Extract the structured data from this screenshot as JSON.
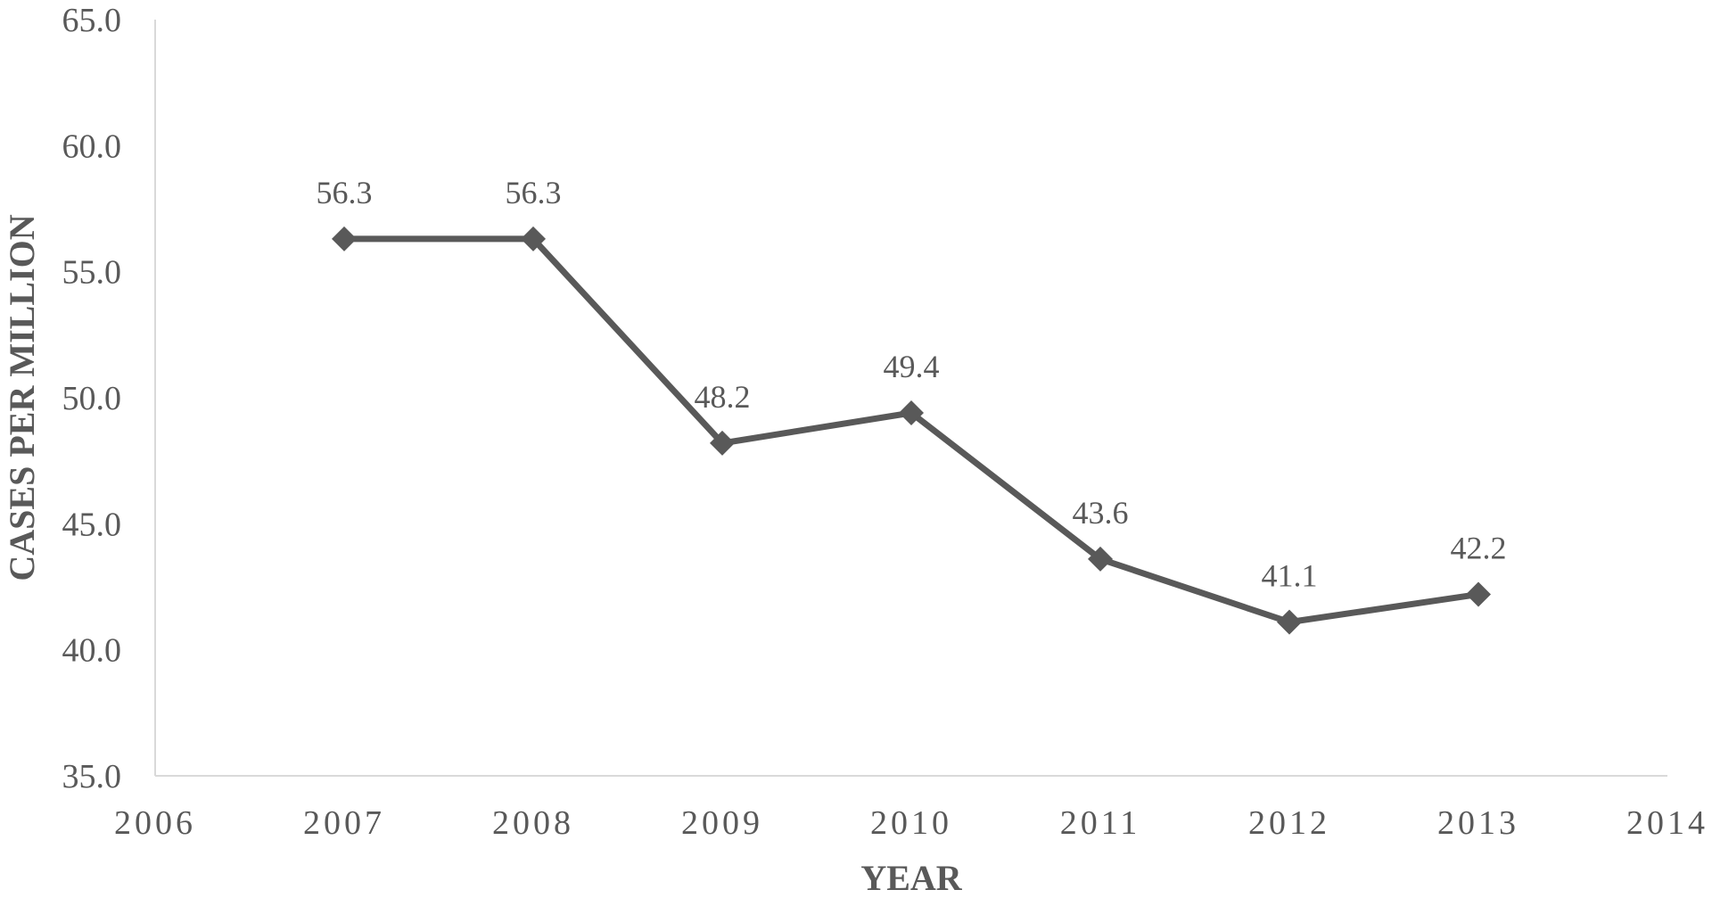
{
  "chart_data": {
    "type": "line",
    "title": "",
    "xlabel": "YEAR",
    "ylabel": "CASES PER MILLION",
    "xlim": [
      2006,
      2014
    ],
    "ylim": [
      35.0,
      65.0
    ],
    "x_ticks": [
      "2006",
      "2007",
      "2008",
      "2009",
      "2010",
      "2011",
      "2012",
      "2013",
      "2014"
    ],
    "y_ticks": [
      "35.0",
      "40.0",
      "45.0",
      "50.0",
      "55.0",
      "60.0",
      "65.0"
    ],
    "grid": false,
    "legend": "none",
    "series": [
      {
        "x": [
          2007,
          2008,
          2009,
          2010,
          2011,
          2012,
          2013
        ],
        "values": [
          56.3,
          56.3,
          48.2,
          49.4,
          43.6,
          41.1,
          42.2
        ],
        "data_labels": [
          "56.3",
          "56.3",
          "48.2",
          "49.4",
          "43.6",
          "41.1",
          "42.2"
        ],
        "marker": "diamond",
        "color": "#595959"
      }
    ]
  }
}
